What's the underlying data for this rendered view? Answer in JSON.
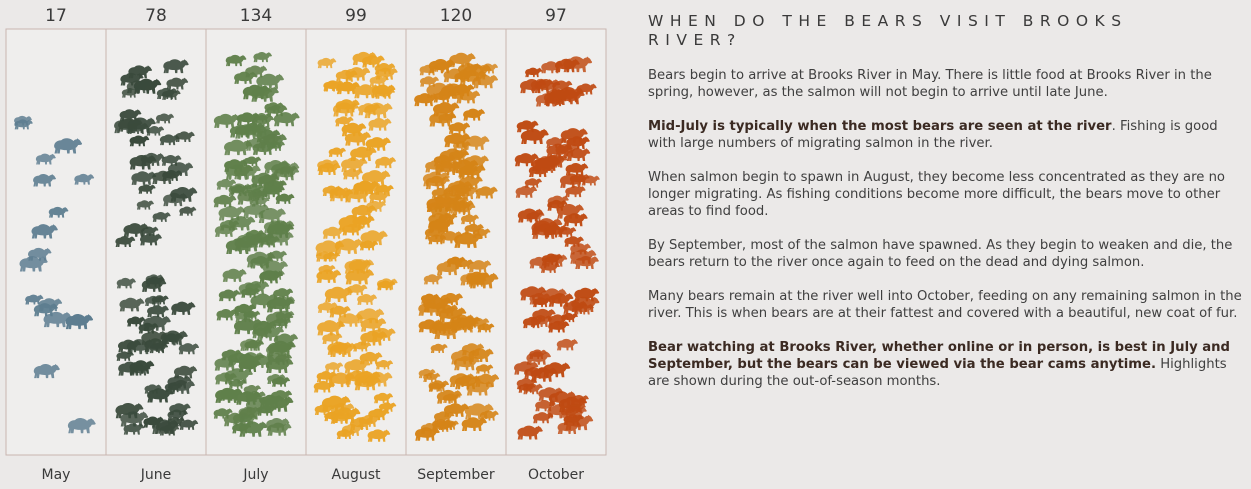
{
  "chart_data": {
    "type": "unit-pictogram",
    "unit_icon": "bear-icon",
    "categories": [
      "May",
      "June",
      "July",
      "August",
      "September",
      "October"
    ],
    "values": [
      17,
      78,
      134,
      99,
      120,
      97
    ],
    "colors": [
      "#5d7d90",
      "#3a4a3c",
      "#5f7f4a",
      "#eaa324",
      "#d58417",
      "#bf4a12"
    ],
    "title": "",
    "xlabel": "",
    "ylabel": "",
    "grid": false,
    "legend": "none"
  },
  "panel": {
    "title": "WHEN DO THE BEARS VISIT BROOKS RIVER?",
    "p1": "Bears begin to arrive at Brooks River in May. There is little food at Brooks River in the spring, however, as the salmon will not begin to arrive until late June.",
    "p2_bold": "Mid-July is typically when the most bears are seen at the river",
    "p2_rest": ". Fishing is good with large numbers of migrating salmon in the river.",
    "p3": "When salmon begin to spawn in August, they become less concentrated as they are no longer migrating. As fishing conditions become more difficult, the bears move to other areas to find food.",
    "p4": "By September, most of the salmon have spawned. As they begin to weaken and die, the bears return to the river once again to feed on the dead and dying salmon.",
    "p5": "Many bears remain at the river well into October, feeding on any remaining salmon in the river. This is when bears are at their fattest and covered with a beautiful, new coat of fur.",
    "p6_bold": "Bear watching at Brooks River, whether online or in person, is best in July and September, but the bears can be viewed via the bear cams anytime.",
    "p6_rest": " Highlights are shown during the out-of-season months."
  }
}
